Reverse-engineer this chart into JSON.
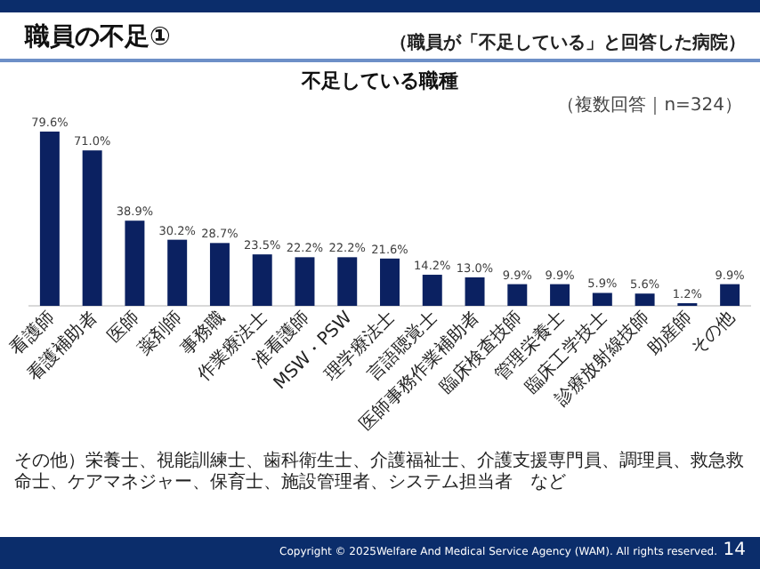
{
  "chart_data": {
    "type": "bar",
    "title": "職員の不足①",
    "subtitle": "不足している職種",
    "categories": [
      "看護師",
      "看護補助者",
      "医師",
      "薬剤師",
      "事務職",
      "作業療法士",
      "准看護師",
      "MSW・PSW",
      "理学療法士",
      "言語聴覚士",
      "医師事務作業補助者",
      "臨床検査技師",
      "管理栄養士",
      "臨床工学技士",
      "診療放射線技師",
      "助産師",
      "その他"
    ],
    "values": [
      79.6,
      71.0,
      38.9,
      30.2,
      28.7,
      23.5,
      22.2,
      22.2,
      21.6,
      14.2,
      13.0,
      9.9,
      9.9,
      5.9,
      5.6,
      1.2,
      9.9
    ],
    "value_labels": [
      "79.6%",
      "71.0%",
      "38.9%",
      "30.2%",
      "28.7%",
      "23.5%",
      "22.2%",
      "22.2%",
      "21.6%",
      "14.2%",
      "13.0%",
      "9.9%",
      "9.9%",
      "5.9%",
      "5.6%",
      "1.2%",
      "9.9%"
    ],
    "color": "#0b2161",
    "annotations": [
      "（職員が「不足している」と回答した病院）",
      "（複数回答｜n=324）",
      "その他）栄養士、視能訓練士、歯科衛生士、介護福祉士、介護支援専門員、調理員、救急救命士、ケアマネジャー、保育士、施設管理者、システム担当者　など",
      "Copyright © 2025Welfare And Medical Service Agency (WAM). All rights reserved.",
      "14"
    ]
  }
}
